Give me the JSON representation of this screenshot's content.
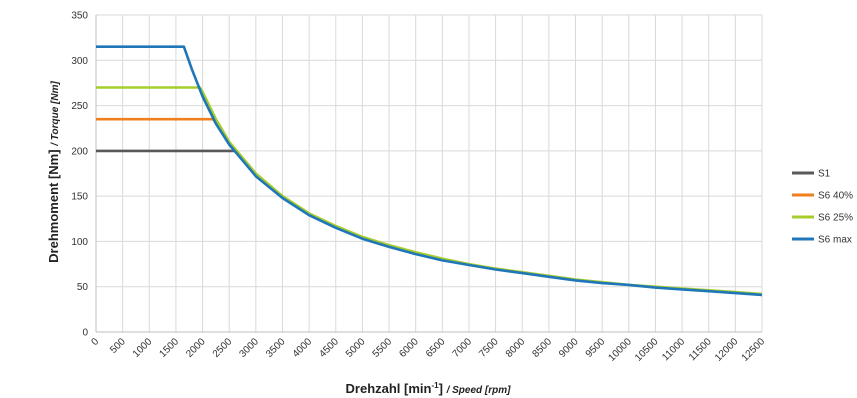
{
  "chart_data": {
    "type": "line",
    "xlabel_main": "Drehzahl [min",
    "xlabel_sup": "-1",
    "xlabel_close": "]",
    "xlabel_sub": "/ Speed [rpm]",
    "ylabel_main": "Drehmoment [Nm]",
    "ylabel_sub": "/ Torque [Nm]",
    "xlim": [
      0,
      12500
    ],
    "ylim": [
      0,
      350
    ],
    "x_ticks": [
      0,
      500,
      1000,
      1500,
      2000,
      2500,
      3000,
      3500,
      4000,
      4500,
      5000,
      5500,
      6000,
      6500,
      7000,
      7500,
      8000,
      8500,
      9000,
      9500,
      10000,
      10500,
      11000,
      11500,
      12000,
      12500
    ],
    "y_ticks": [
      0,
      50,
      100,
      150,
      200,
      250,
      300,
      350
    ],
    "grid": true,
    "legend_position": "right",
    "series": [
      {
        "name": "S1",
        "color": "#595959",
        "x": [
          0,
          2600
        ],
        "y": [
          200,
          200
        ]
      },
      {
        "name": "S6 40%",
        "color": "#f07f1e",
        "x": [
          0,
          2200,
          2300,
          2400,
          2500
        ],
        "y": [
          235,
          235,
          226,
          217,
          208
        ]
      },
      {
        "name": "S6 25%",
        "color": "#a6cd2c",
        "x": [
          0,
          1950,
          2000,
          2250,
          2500,
          3000,
          3500,
          4000,
          4500,
          5000,
          5500,
          6000,
          6500,
          7000,
          7500,
          8000,
          8500,
          9000,
          9500,
          10000,
          10500,
          11000,
          11500,
          12000,
          12500
        ],
        "y": [
          270,
          270,
          265,
          235,
          210,
          175,
          150,
          131,
          117,
          105,
          96,
          88,
          81,
          75,
          70,
          66,
          62,
          58,
          55,
          52,
          50,
          48,
          46,
          44,
          42
        ]
      },
      {
        "name": "S6 max",
        "color": "#1f77b9",
        "x": [
          0,
          1650,
          1800,
          2000,
          2250,
          2500,
          3000,
          3500,
          4000,
          4500,
          5000,
          5500,
          6000,
          6500,
          7000,
          7500,
          8000,
          8500,
          9000,
          9500,
          10000,
          10500,
          11000,
          11500,
          12000,
          12500
        ],
        "y": [
          315,
          315,
          290,
          260,
          230,
          207,
          172,
          148,
          129,
          115,
          103,
          94,
          86,
          79,
          74,
          69,
          65,
          61,
          57,
          54,
          52,
          49,
          47,
          45,
          43,
          41
        ]
      }
    ]
  }
}
